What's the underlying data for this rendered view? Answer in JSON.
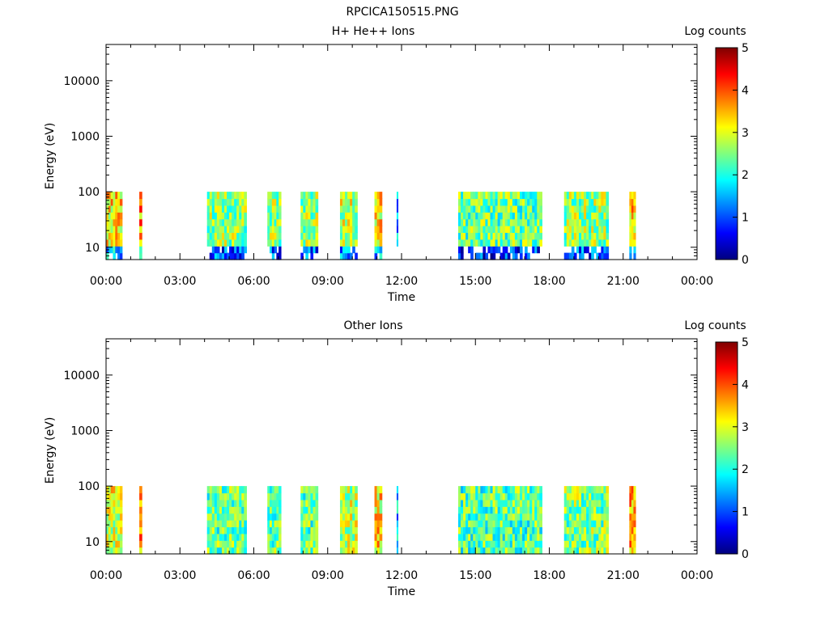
{
  "figure_title": "RPCICA150515.PNG",
  "colors": {
    "colorscale": [
      "#00007f",
      "#0000ff",
      "#007fff",
      "#00ffff",
      "#7fff7f",
      "#ffff00",
      "#ff7f00",
      "#ff0000",
      "#7f0000"
    ]
  },
  "chart_data": [
    {
      "type": "heatmap",
      "title": "H+ He++ Ions",
      "xlabel": "Time",
      "ylabel": "Energy (eV)",
      "x_unit": "hours",
      "xlim": [
        0,
        24
      ],
      "x_tick_labels": [
        "00:00",
        "03:00",
        "06:00",
        "09:00",
        "12:00",
        "15:00",
        "18:00",
        "21:00",
        "00:00"
      ],
      "y_scale": "log",
      "ylim": [
        6,
        45000
      ],
      "y_tick_labels": [
        "10",
        "100",
        "1000",
        "10000"
      ],
      "colorbar": {
        "label": "Log counts",
        "range": [
          0,
          5
        ],
        "tick_labels": [
          "0",
          "1",
          "2",
          "3",
          "4",
          "5"
        ]
      },
      "energy_range_eV": [
        6,
        100
      ],
      "data_intervals": [
        {
          "start": 0.0,
          "end": 0.65,
          "level": 3.2
        },
        {
          "start": 1.35,
          "end": 1.45,
          "level": 3.6
        },
        {
          "start": 4.1,
          "end": 5.7,
          "level": 2.6
        },
        {
          "start": 6.55,
          "end": 7.1,
          "level": 2.6
        },
        {
          "start": 7.9,
          "end": 8.6,
          "level": 2.6
        },
        {
          "start": 9.5,
          "end": 10.2,
          "level": 2.8
        },
        {
          "start": 10.9,
          "end": 11.2,
          "level": 3.2
        },
        {
          "start": 11.8,
          "end": 11.85,
          "level": 1.5
        },
        {
          "start": 14.3,
          "end": 17.7,
          "level": 2.4
        },
        {
          "start": 18.6,
          "end": 20.4,
          "level": 2.6
        },
        {
          "start": 21.25,
          "end": 21.5,
          "level": 3.4
        }
      ]
    },
    {
      "type": "heatmap",
      "title": "Other Ions",
      "xlabel": "Time",
      "ylabel": "Energy (eV)",
      "x_unit": "hours",
      "xlim": [
        0,
        24
      ],
      "x_tick_labels": [
        "00:00",
        "03:00",
        "06:00",
        "09:00",
        "12:00",
        "15:00",
        "18:00",
        "21:00",
        "00:00"
      ],
      "y_scale": "log",
      "ylim": [
        6,
        45000
      ],
      "y_tick_labels": [
        "10",
        "100",
        "1000",
        "10000"
      ],
      "colorbar": {
        "label": "Log counts",
        "range": [
          0,
          5
        ],
        "tick_labels": [
          "0",
          "1",
          "2",
          "3",
          "4",
          "5"
        ]
      },
      "energy_range_eV": [
        6,
        100
      ],
      "data_intervals": [
        {
          "start": 0.0,
          "end": 0.65,
          "level": 3.0
        },
        {
          "start": 1.35,
          "end": 1.45,
          "level": 3.6
        },
        {
          "start": 4.1,
          "end": 5.7,
          "level": 2.4
        },
        {
          "start": 6.55,
          "end": 7.1,
          "level": 2.4
        },
        {
          "start": 7.9,
          "end": 8.6,
          "level": 2.4
        },
        {
          "start": 9.5,
          "end": 10.2,
          "level": 2.8
        },
        {
          "start": 10.9,
          "end": 11.2,
          "level": 3.2
        },
        {
          "start": 11.8,
          "end": 11.85,
          "level": 1.5
        },
        {
          "start": 14.3,
          "end": 17.7,
          "level": 2.3
        },
        {
          "start": 18.6,
          "end": 20.4,
          "level": 2.5
        },
        {
          "start": 21.25,
          "end": 21.5,
          "level": 3.4
        }
      ]
    }
  ]
}
